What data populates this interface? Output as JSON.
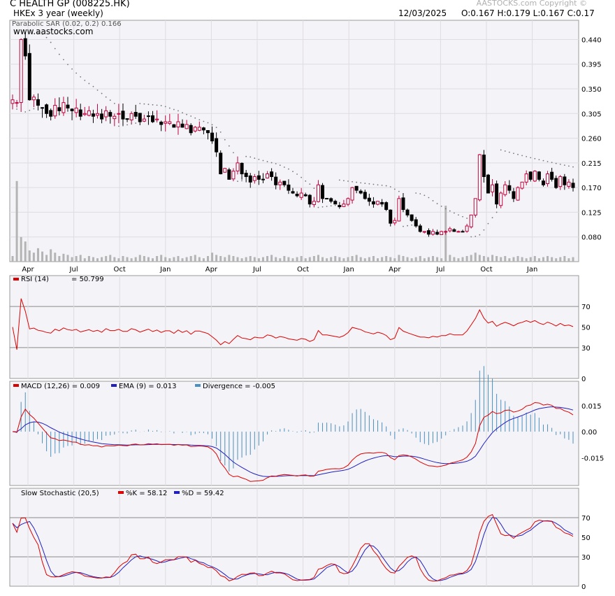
{
  "header": {
    "title": "C HEALTH GP (008225.HK)",
    "subtitle": "HKEx  3 year (weekly)",
    "copyright": "AASTOCKS.com Copyright ©",
    "date": "12/03/2025",
    "ohlc": "O:0.167  H:0.179  L:0.167  C:0.17",
    "watermark": "www.aastocks.com"
  },
  "colors": {
    "up": "#c0003c",
    "down": "#000000",
    "sar": "#777777",
    "volume": "#b4b4b4",
    "rsi": "#dd0000",
    "macd": "#dd0000",
    "ema": "#2020c0",
    "divergence": "#4a90c0",
    "k": "#dd0000",
    "d": "#2020c0",
    "panel_bg": "#f4f3f7",
    "grid": "#dedde2"
  },
  "chart_data": [
    {
      "type": "candlestick",
      "name": "price",
      "indicator_label": "Parabolic SAR (0.02, 0.2)",
      "indicator_value": "0.166",
      "yticks": [
        "0.440",
        "0.395",
        "0.350",
        "0.305",
        "0.260",
        "0.215",
        "0.170",
        "0.125",
        "0.080"
      ],
      "ylim": [
        0.035,
        0.475
      ],
      "xticks": [
        "Apr",
        "Jul",
        "Oct",
        "Jan",
        "Apr",
        "Jul",
        "Oct",
        "Jan",
        "Apr",
        "Jul",
        "Oct",
        "Jan"
      ],
      "close": [
        0.33,
        0.325,
        0.44,
        0.41,
        0.33,
        0.335,
        0.32,
        0.315,
        0.305,
        0.3,
        0.32,
        0.31,
        0.325,
        0.315,
        0.31,
        0.315,
        0.3,
        0.305,
        0.31,
        0.3,
        0.305,
        0.295,
        0.31,
        0.3,
        0.3,
        0.305,
        0.295,
        0.295,
        0.305,
        0.3,
        0.29,
        0.295,
        0.3,
        0.29,
        0.295,
        0.285,
        0.29,
        0.29,
        0.28,
        0.29,
        0.28,
        0.285,
        0.27,
        0.28,
        0.28,
        0.275,
        0.27,
        0.255,
        0.235,
        0.195,
        0.205,
        0.185,
        0.2,
        0.215,
        0.195,
        0.19,
        0.18,
        0.19,
        0.185,
        0.185,
        0.195,
        0.19,
        0.175,
        0.18,
        0.175,
        0.165,
        0.16,
        0.155,
        0.16,
        0.155,
        0.14,
        0.145,
        0.175,
        0.15,
        0.15,
        0.145,
        0.14,
        0.135,
        0.14,
        0.15,
        0.17,
        0.165,
        0.16,
        0.15,
        0.145,
        0.14,
        0.145,
        0.14,
        0.13,
        0.105,
        0.11,
        0.15,
        0.13,
        0.12,
        0.11,
        0.1,
        0.09,
        0.09,
        0.085,
        0.09,
        0.085,
        0.09,
        0.09,
        0.095,
        0.09,
        0.09,
        0.09,
        0.1,
        0.12,
        0.15,
        0.23,
        0.19,
        0.16,
        0.175,
        0.14,
        0.16,
        0.175,
        0.165,
        0.15,
        0.17,
        0.18,
        0.195,
        0.185,
        0.2,
        0.185,
        0.175,
        0.195,
        0.185,
        0.17,
        0.19,
        0.175,
        0.18,
        0.17
      ],
      "volume_scale": "relative 0-1",
      "volume": [
        0.05,
        0.72,
        0.22,
        0.18,
        0.1,
        0.08,
        0.12,
        0.09,
        0.06,
        0.11,
        0.08,
        0.05,
        0.07,
        0.06,
        0.04,
        0.05,
        0.06,
        0.03,
        0.05,
        0.04,
        0.03,
        0.04,
        0.05,
        0.06,
        0.04,
        0.03,
        0.05,
        0.04,
        0.03,
        0.04,
        0.06,
        0.05,
        0.04,
        0.03,
        0.05,
        0.06,
        0.04,
        0.03,
        0.04,
        0.05,
        0.03,
        0.04,
        0.05,
        0.06,
        0.04,
        0.03,
        0.05,
        0.08,
        0.06,
        0.05,
        0.04,
        0.06,
        0.05,
        0.04,
        0.03,
        0.04,
        0.05,
        0.04,
        0.03,
        0.04,
        0.05,
        0.06,
        0.04,
        0.03,
        0.05,
        0.04,
        0.03,
        0.04,
        0.05,
        0.03,
        0.04,
        0.05,
        0.06,
        0.04,
        0.03,
        0.04,
        0.05,
        0.04,
        0.03,
        0.04,
        0.05,
        0.06,
        0.04,
        0.03,
        0.04,
        0.05,
        0.03,
        0.04,
        0.05,
        0.04,
        0.03,
        0.06,
        0.05,
        0.04,
        0.03,
        0.04,
        0.05,
        0.03,
        0.04,
        0.05,
        0.04,
        0.03,
        0.5,
        0.06,
        0.04,
        0.03,
        0.04,
        0.05,
        0.06,
        0.08,
        0.06,
        0.05,
        0.04,
        0.06,
        0.05,
        0.04,
        0.05,
        0.03,
        0.04,
        0.05,
        0.04,
        0.03,
        0.04,
        0.05,
        0.03,
        0.04,
        0.05,
        0.04,
        0.03,
        0.04,
        0.05,
        0.03,
        0.04
      ]
    },
    {
      "type": "line",
      "name": "rsi",
      "label": "RSI (14)",
      "value": "50.799",
      "yticks": [
        "70",
        "50",
        "30",
        "0"
      ],
      "ylim": [
        0,
        100
      ],
      "guides": [
        70,
        30
      ]
    },
    {
      "type": "line",
      "name": "macd",
      "labels": [
        "MACD (12,26) = 0.009",
        "EMA (9) = 0.013",
        "Divergence = -0.005"
      ],
      "yticks": [
        "0.015",
        "0.00",
        "-0.015"
      ],
      "ylim": [
        -0.031,
        0.029
      ]
    },
    {
      "type": "line",
      "name": "stochastic",
      "labels": [
        "Slow Stochastic (20,5)",
        "%K = 58.12",
        "%D = 59.42"
      ],
      "yticks": [
        "70",
        "50",
        "30",
        "0"
      ],
      "ylim": [
        0,
        100
      ],
      "guides": [
        70,
        30
      ]
    }
  ]
}
